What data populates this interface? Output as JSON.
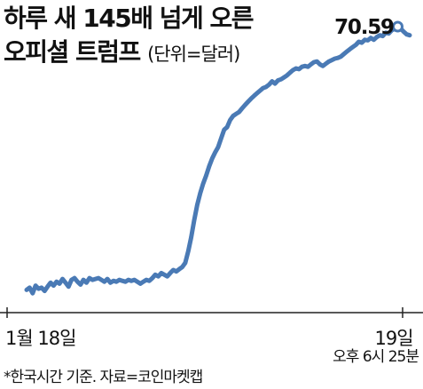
{
  "title": {
    "line1": "하루 새 145배 넘게 오른",
    "line2": "오피셜 트럼프",
    "unit": "(단위=달러)"
  },
  "footnote": "*한국시간 기준. 자료=코인마켓캡",
  "colors": {
    "line": "#4a7ab5",
    "text": "#111111",
    "axis": "#222222",
    "marker_fill": "#ffffff"
  },
  "chart_data": {
    "type": "line",
    "x_tick_labels": {
      "start": "1월 18일",
      "end": "19일",
      "end_sub": "오후 6시 25분"
    },
    "peak_label": "70.59",
    "ylim": [
      0,
      72
    ],
    "series": [
      {
        "values": [
          0.48,
          0.5,
          0.45,
          0.52,
          0.49,
          0.5,
          0.47,
          0.51,
          0.55,
          0.52,
          0.56,
          0.54,
          0.59,
          0.55,
          0.51,
          0.58,
          0.6,
          0.56,
          0.53,
          0.58,
          0.55,
          0.6,
          0.58,
          0.59,
          0.6,
          0.58,
          0.56,
          0.59,
          0.55,
          0.57,
          0.56,
          0.58,
          0.57,
          0.56,
          0.58,
          0.57,
          0.58,
          0.56,
          0.54,
          0.56,
          0.58,
          0.57,
          0.6,
          0.64,
          0.62,
          0.66,
          0.64,
          0.62,
          0.66,
          0.7,
          0.68,
          0.71,
          0.74,
          0.8,
          1.0,
          1.3,
          1.8,
          2.4,
          3.0,
          3.6,
          4.2,
          5.0,
          5.8,
          6.5,
          7.2,
          8.5,
          10.0,
          10.5,
          12.0,
          13.0,
          13.5,
          14.0,
          15.0,
          16.0,
          17.0,
          18.0,
          19.0,
          20.0,
          21.0,
          22.0,
          22.5,
          23.5,
          25.0,
          24.0,
          25.5,
          26.0,
          27.0,
          28.0,
          29.5,
          31.0,
          32.0,
          31.5,
          33.0,
          33.5,
          33.0,
          34.5,
          36.0,
          36.5,
          34.5,
          33.5,
          35.0,
          36.5,
          37.5,
          38.5,
          39.0,
          40.0,
          42.0,
          44.0,
          46.0,
          48.0,
          50.0,
          53.0,
          52.0,
          55.0,
          54.5,
          57.0,
          55.0,
          58.0,
          60.0,
          59.0,
          63.0,
          62.0,
          66.0,
          68.0,
          70.59,
          68.0,
          64.0,
          61.0,
          60.0
        ]
      }
    ]
  }
}
